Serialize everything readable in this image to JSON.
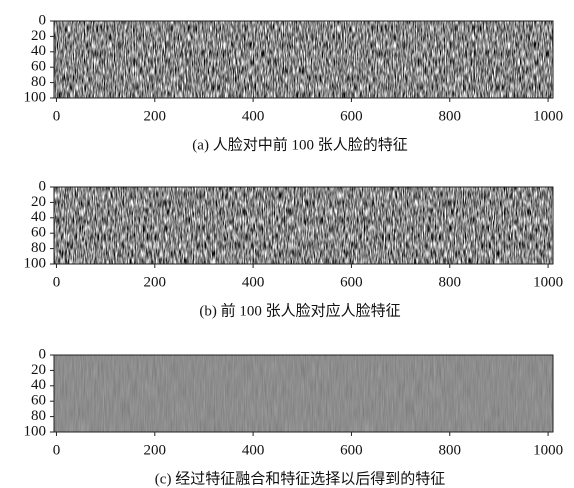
{
  "chart_data": [
    {
      "type": "heatmap",
      "caption": "(a) 人脸对中前 100 张人脸的特征",
      "xlim": [
        -5,
        1010
      ],
      "xticks": [
        0,
        200,
        400,
        600,
        800,
        1000
      ],
      "ylim": [
        0,
        100
      ],
      "yticks": [
        0,
        20,
        40,
        60,
        80,
        100
      ]
    },
    {
      "type": "heatmap",
      "caption": "(b) 前 100 张人脸对应人脸特征",
      "xlim": [
        -5,
        1010
      ],
      "xticks": [
        0,
        200,
        400,
        600,
        800,
        1000
      ],
      "ylim": [
        0,
        100
      ],
      "yticks": [
        0,
        20,
        40,
        60,
        80,
        100
      ]
    },
    {
      "type": "heatmap",
      "caption": "(c) 经过特征融合和特征选择以后得到的特征",
      "xlim": [
        -5,
        1010
      ],
      "xticks": [
        0,
        200,
        400,
        600,
        800,
        1000
      ],
      "ylim": [
        0,
        100
      ],
      "yticks": [
        0,
        20,
        40,
        60,
        80,
        100
      ]
    }
  ]
}
